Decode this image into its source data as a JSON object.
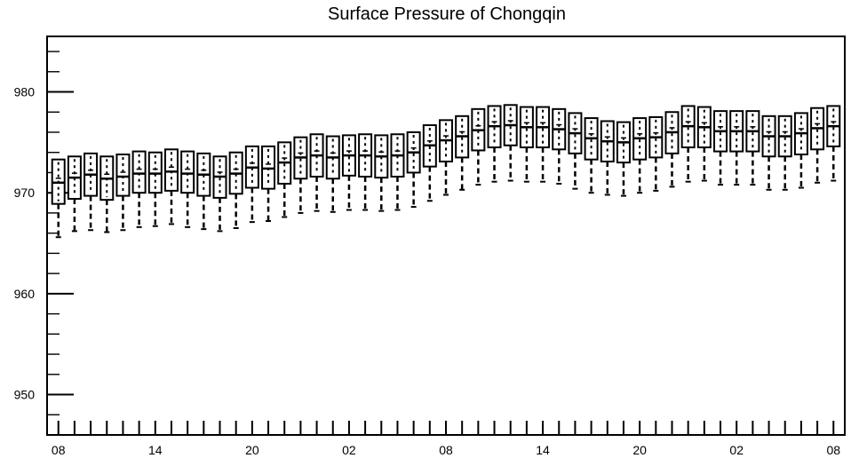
{
  "chart_data": {
    "type": "box",
    "title": "Surface Pressure of Chongqin",
    "xlabel": "",
    "ylabel": "",
    "ylim": [
      946,
      985.5
    ],
    "y_ticks": [
      950,
      960,
      970,
      980
    ],
    "y_tick_labels": [
      "950",
      "960",
      "970",
      "980"
    ],
    "y_minor_step": 2,
    "x_tick_labels": [
      "08",
      "14",
      "20",
      "02",
      "08",
      "14",
      "20",
      "02",
      "08"
    ],
    "x_tick_positions": [
      0,
      6,
      12,
      18,
      24,
      30,
      36,
      42,
      48
    ],
    "x_range": [
      -0.7,
      48.7
    ],
    "grid": false,
    "legend": "none",
    "colors": {
      "stroke": "#000000",
      "background": "#ffffff"
    },
    "boxes": [
      {
        "x": 0,
        "min": 965.6,
        "q1": 968.9,
        "median": 971.0,
        "q3": 973.3
      },
      {
        "x": 1,
        "min": 966.2,
        "q1": 969.4,
        "median": 971.5,
        "q3": 973.6
      },
      {
        "x": 2,
        "min": 966.3,
        "q1": 969.7,
        "median": 971.8,
        "q3": 973.9
      },
      {
        "x": 3,
        "min": 966.1,
        "q1": 969.3,
        "median": 971.4,
        "q3": 973.6
      },
      {
        "x": 4,
        "min": 966.3,
        "q1": 969.7,
        "median": 971.6,
        "q3": 973.8
      },
      {
        "x": 5,
        "min": 966.6,
        "q1": 970.0,
        "median": 971.9,
        "q3": 974.1
      },
      {
        "x": 6,
        "min": 966.7,
        "q1": 970.0,
        "median": 971.9,
        "q3": 974.0
      },
      {
        "x": 7,
        "min": 966.9,
        "q1": 970.2,
        "median": 972.1,
        "q3": 974.3
      },
      {
        "x": 8,
        "min": 966.6,
        "q1": 970.0,
        "median": 971.9,
        "q3": 974.1
      },
      {
        "x": 9,
        "min": 966.4,
        "q1": 969.7,
        "median": 971.8,
        "q3": 973.9
      },
      {
        "x": 10,
        "min": 966.2,
        "q1": 969.5,
        "median": 971.6,
        "q3": 973.6
      },
      {
        "x": 11,
        "min": 966.5,
        "q1": 969.9,
        "median": 971.9,
        "q3": 974.0
      },
      {
        "x": 12,
        "min": 967.1,
        "q1": 970.5,
        "median": 972.5,
        "q3": 974.6
      },
      {
        "x": 13,
        "min": 967.2,
        "q1": 970.4,
        "median": 972.4,
        "q3": 974.6
      },
      {
        "x": 14,
        "min": 967.6,
        "q1": 970.9,
        "median": 973.0,
        "q3": 975.0
      },
      {
        "x": 15,
        "min": 968.0,
        "q1": 971.4,
        "median": 973.5,
        "q3": 975.5
      },
      {
        "x": 16,
        "min": 968.2,
        "q1": 971.6,
        "median": 973.7,
        "q3": 975.8
      },
      {
        "x": 17,
        "min": 968.1,
        "q1": 971.4,
        "median": 973.5,
        "q3": 975.6
      },
      {
        "x": 18,
        "min": 968.3,
        "q1": 971.7,
        "median": 973.7,
        "q3": 975.7
      },
      {
        "x": 19,
        "min": 968.3,
        "q1": 971.6,
        "median": 973.7,
        "q3": 975.8
      },
      {
        "x": 20,
        "min": 968.2,
        "q1": 971.5,
        "median": 973.6,
        "q3": 975.7
      },
      {
        "x": 21,
        "min": 968.3,
        "q1": 971.6,
        "median": 973.7,
        "q3": 975.8
      },
      {
        "x": 22,
        "min": 968.6,
        "q1": 972.0,
        "median": 974.0,
        "q3": 976.0
      },
      {
        "x": 23,
        "min": 969.2,
        "q1": 972.6,
        "median": 974.7,
        "q3": 976.7
      },
      {
        "x": 24,
        "min": 969.8,
        "q1": 973.1,
        "median": 975.2,
        "q3": 977.2
      },
      {
        "x": 25,
        "min": 970.3,
        "q1": 973.5,
        "median": 975.6,
        "q3": 977.6
      },
      {
        "x": 26,
        "min": 970.8,
        "q1": 974.2,
        "median": 976.2,
        "q3": 978.3
      },
      {
        "x": 27,
        "min": 971.1,
        "q1": 974.5,
        "median": 976.6,
        "q3": 978.6
      },
      {
        "x": 28,
        "min": 971.2,
        "q1": 974.7,
        "median": 976.7,
        "q3": 978.7
      },
      {
        "x": 29,
        "min": 971.1,
        "q1": 974.5,
        "median": 976.5,
        "q3": 978.5
      },
      {
        "x": 30,
        "min": 971.1,
        "q1": 974.5,
        "median": 976.5,
        "q3": 978.5
      },
      {
        "x": 31,
        "min": 970.9,
        "q1": 974.3,
        "median": 976.3,
        "q3": 978.3
      },
      {
        "x": 32,
        "min": 970.4,
        "q1": 973.9,
        "median": 975.9,
        "q3": 977.9
      },
      {
        "x": 33,
        "min": 970.0,
        "q1": 973.3,
        "median": 975.4,
        "q3": 977.4
      },
      {
        "x": 34,
        "min": 969.8,
        "q1": 973.1,
        "median": 975.1,
        "q3": 977.1
      },
      {
        "x": 35,
        "min": 969.7,
        "q1": 973.0,
        "median": 975.0,
        "q3": 977.0
      },
      {
        "x": 36,
        "min": 970.0,
        "q1": 973.3,
        "median": 975.4,
        "q3": 977.4
      },
      {
        "x": 37,
        "min": 970.2,
        "q1": 973.5,
        "median": 975.5,
        "q3": 977.5
      },
      {
        "x": 38,
        "min": 970.6,
        "q1": 973.9,
        "median": 976.0,
        "q3": 978.0
      },
      {
        "x": 39,
        "min": 971.1,
        "q1": 974.5,
        "median": 976.6,
        "q3": 978.6
      },
      {
        "x": 40,
        "min": 971.2,
        "q1": 974.5,
        "median": 976.5,
        "q3": 978.5
      },
      {
        "x": 41,
        "min": 970.8,
        "q1": 974.1,
        "median": 976.1,
        "q3": 978.1
      },
      {
        "x": 42,
        "min": 970.8,
        "q1": 974.1,
        "median": 976.1,
        "q3": 978.1
      },
      {
        "x": 43,
        "min": 970.8,
        "q1": 974.1,
        "median": 976.1,
        "q3": 978.1
      },
      {
        "x": 44,
        "min": 970.3,
        "q1": 973.6,
        "median": 975.6,
        "q3": 977.6
      },
      {
        "x": 45,
        "min": 970.3,
        "q1": 973.6,
        "median": 975.6,
        "q3": 977.6
      },
      {
        "x": 46,
        "min": 970.5,
        "q1": 973.8,
        "median": 975.9,
        "q3": 977.9
      },
      {
        "x": 47,
        "min": 971.0,
        "q1": 974.3,
        "median": 976.4,
        "q3": 978.4
      },
      {
        "x": 48,
        "min": 971.2,
        "q1": 974.6,
        "median": 976.6,
        "q3": 978.6
      }
    ]
  }
}
